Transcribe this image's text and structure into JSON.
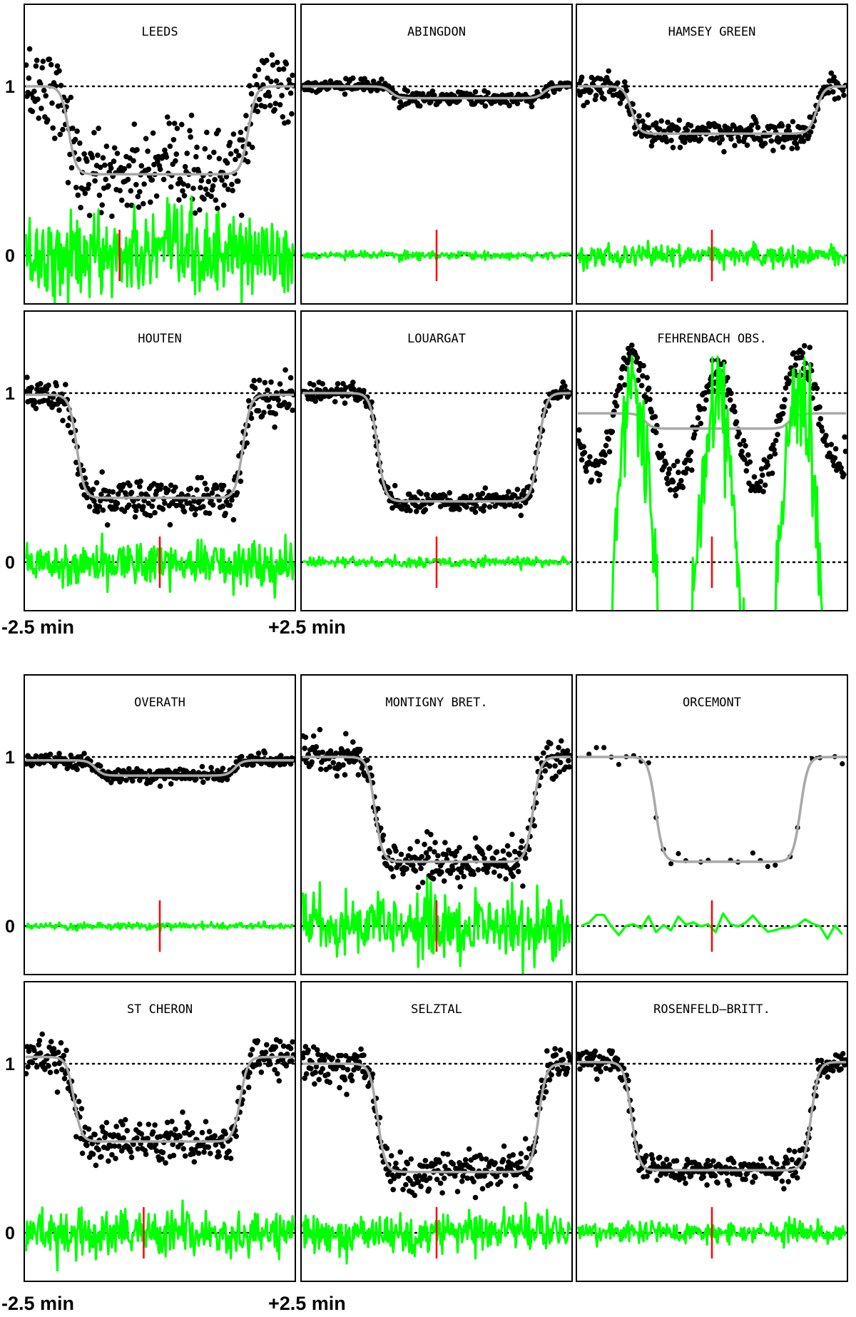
{
  "chart_data": {
    "type": "line",
    "y_ticks": [
      "1",
      "0"
    ],
    "x_start_label": "-2.5 min",
    "x_end_label": "+2.5 min",
    "x_range_min": [
      -2.5,
      2.5
    ],
    "colors": {
      "observed_points": "#000000",
      "model_curve": "#a8a8a8",
      "residuals": "#00ff00",
      "central_time_marker": "#ff0000",
      "reference_lines": "#000000"
    },
    "grid": false,
    "panels": [
      {
        "title": "LEEDS",
        "depth": 0.48,
        "ingress": -1.7,
        "egress": 1.65,
        "noise": 0.13,
        "resid_scale": 1.0,
        "marker": -0.75,
        "baseline": 1.0
      },
      {
        "title": "ABINGDON",
        "depth": 0.93,
        "ingress": -0.85,
        "egress": 2.0,
        "noise": 0.02,
        "resid_scale": 0.6,
        "marker": 0.0,
        "baseline": 1.0
      },
      {
        "title": "HAMSEY GREEN",
        "depth": 0.72,
        "ingress": -1.5,
        "egress": 1.95,
        "noise": 0.04,
        "resid_scale": 0.8,
        "marker": 0.0,
        "baseline": 1.0
      },
      {
        "title": "HOUTEN",
        "depth": 0.38,
        "ingress": -1.55,
        "egress": 1.55,
        "noise": 0.06,
        "resid_scale": 1.1,
        "marker": 0.0,
        "baseline": 0.99
      },
      {
        "title": "LOUARGAT",
        "depth": 0.36,
        "ingress": -1.1,
        "egress": 1.9,
        "noise": 0.03,
        "resid_scale": 0.5,
        "marker": 0.0,
        "baseline": 1.0
      },
      {
        "title": "FEHRENBACH OBS.",
        "depth": 0.79,
        "ingress": -1.25,
        "egress": 1.45,
        "noise": 0.2,
        "resid_scale": 3.0,
        "marker": 0.0,
        "baseline": 0.88
      },
      {
        "title": "OVERATH",
        "depth": 0.89,
        "ingress": -1.2,
        "egress": 1.4,
        "noise": 0.02,
        "resid_scale": 0.5,
        "marker": 0.0,
        "baseline": 0.98
      },
      {
        "title": "MONTIGNY BRET.",
        "depth": 0.38,
        "ingress": -1.15,
        "egress": 1.8,
        "noise": 0.06,
        "resid_scale": 1.6,
        "marker": 0.0,
        "baseline": 1.0
      },
      {
        "title": "ORCEMONT",
        "depth": 0.38,
        "ingress": -1.05,
        "egress": 1.65,
        "noise": 0.05,
        "resid_scale": 1.2,
        "marker": 0.0,
        "baseline": 1.0
      },
      {
        "title": "ST CHERON",
        "depth": 0.54,
        "ingress": -1.6,
        "egress": 1.5,
        "noise": 0.06,
        "resid_scale": 1.1,
        "marker": -0.3,
        "baseline": 1.04
      },
      {
        "title": "SELZTAL",
        "depth": 0.36,
        "ingress": -1.1,
        "egress": 1.9,
        "noise": 0.06,
        "resid_scale": 1.0,
        "marker": 0.0,
        "baseline": 1.0
      },
      {
        "title": "ROSENFELD–BRITT.",
        "depth": 0.37,
        "ingress": -1.5,
        "egress": 1.85,
        "noise": 0.04,
        "resid_scale": 0.8,
        "marker": 0.0,
        "baseline": 1.01
      }
    ]
  }
}
